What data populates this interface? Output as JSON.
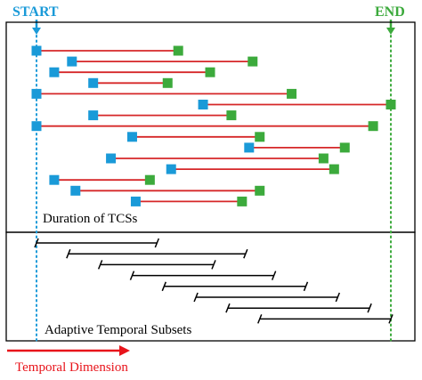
{
  "labels": {
    "start": "START",
    "end": "END",
    "duration": "Duration of TCSs",
    "subsets": "Adaptive Temporal Subsets",
    "axis": "Temporal Dimension"
  },
  "colors": {
    "start_marker": "#1a9ad8",
    "end_marker": "#3caa3c",
    "duration_line": "#d62728",
    "subset_line": "#000000",
    "axis_arrow": "#e8141b",
    "frame": "#000000"
  },
  "tcs_durations": [
    {
      "start": 0.0,
      "end": 0.4
    },
    {
      "start": 0.1,
      "end": 0.61
    },
    {
      "start": 0.05,
      "end": 0.49
    },
    {
      "start": 0.16,
      "end": 0.37
    },
    {
      "start": 0.0,
      "end": 0.72
    },
    {
      "start": 0.47,
      "end": 1.0
    },
    {
      "start": 0.16,
      "end": 0.55
    },
    {
      "start": 0.0,
      "end": 0.95
    },
    {
      "start": 0.27,
      "end": 0.63
    },
    {
      "start": 0.6,
      "end": 0.87
    },
    {
      "start": 0.21,
      "end": 0.81
    },
    {
      "start": 0.38,
      "end": 0.84
    },
    {
      "start": 0.05,
      "end": 0.32
    },
    {
      "start": 0.11,
      "end": 0.63
    },
    {
      "start": 0.28,
      "end": 0.58
    }
  ],
  "adaptive_subsets": [
    {
      "start": 0.0,
      "end": 0.34
    },
    {
      "start": 0.09,
      "end": 0.59
    },
    {
      "start": 0.18,
      "end": 0.5
    },
    {
      "start": 0.27,
      "end": 0.67
    },
    {
      "start": 0.36,
      "end": 0.76
    },
    {
      "start": 0.45,
      "end": 0.85
    },
    {
      "start": 0.54,
      "end": 0.94
    },
    {
      "start": 0.63,
      "end": 1.0
    }
  ]
}
